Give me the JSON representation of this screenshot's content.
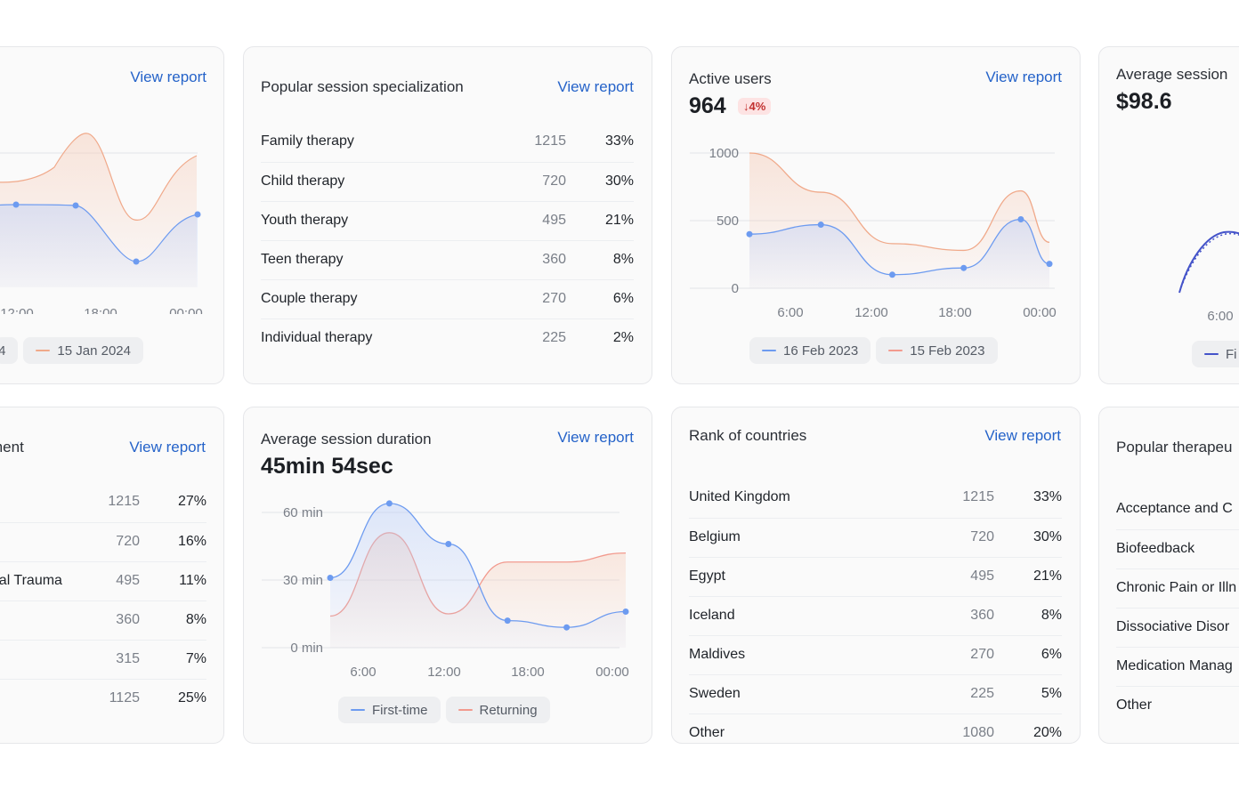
{
  "colors": {
    "blue": "#6d9bf0",
    "orange": "#f0a98a",
    "red": "#f29a8e",
    "indigo": "#4453c9",
    "link": "#2563c9"
  },
  "common": {
    "view_report": "View report"
  },
  "card_sessions_left": {
    "legend": [
      "4",
      "15 Jan 2024"
    ],
    "x_ticks": [
      "12:00",
      "18:00",
      "00:00"
    ]
  },
  "card_specialization": {
    "title": "Popular session specialization",
    "rows": [
      {
        "name": "Family therapy",
        "count": "1215",
        "pct": "33%"
      },
      {
        "name": "Child therapy",
        "count": "720",
        "pct": "30%"
      },
      {
        "name": "Youth therapy",
        "count": "495",
        "pct": "21%"
      },
      {
        "name": "Teen therapy",
        "count": "360",
        "pct": "8%"
      },
      {
        "name": "Couple therapy",
        "count": "270",
        "pct": "6%"
      },
      {
        "name": "Individual therapy",
        "count": "225",
        "pct": "2%"
      }
    ]
  },
  "card_active_users": {
    "title": "Active users",
    "value": "964",
    "delta": "↓4%",
    "y_ticks": [
      "1000",
      "500",
      "0"
    ],
    "x_ticks": [
      "6:00",
      "12:00",
      "18:00",
      "00:00"
    ],
    "legend": [
      "16 Feb 2023",
      "15 Feb 2023"
    ]
  },
  "card_avg_session_right": {
    "title": "Average session",
    "value": "$98.6",
    "x_tick": "6:00",
    "legend": "Fi"
  },
  "card_treatment": {
    "title": "ment",
    "rows": [
      {
        "name": "",
        "count": "1215",
        "pct": "27%"
      },
      {
        "name": "",
        "count": "720",
        "pct": "16%"
      },
      {
        "name": "onal Trauma",
        "count": "495",
        "pct": "11%"
      },
      {
        "name": "",
        "count": "360",
        "pct": "8%"
      },
      {
        "name": "",
        "count": "315",
        "pct": "7%"
      },
      {
        "name": "",
        "count": "1125",
        "pct": "25%"
      }
    ]
  },
  "card_duration": {
    "title": "Average session duration",
    "value": "45min 54sec",
    "y_ticks": [
      "60 min",
      "30 min",
      "0 min"
    ],
    "x_ticks": [
      "6:00",
      "12:00",
      "18:00",
      "00:00"
    ],
    "legend": [
      "First-time",
      "Returning"
    ]
  },
  "card_countries": {
    "title": "Rank of countries",
    "rows": [
      {
        "name": "United Kingdom",
        "count": "1215",
        "pct": "33%"
      },
      {
        "name": "Belgium",
        "count": "720",
        "pct": "30%"
      },
      {
        "name": "Egypt",
        "count": "495",
        "pct": "21%"
      },
      {
        "name": "Iceland",
        "count": "360",
        "pct": "8%"
      },
      {
        "name": "Maldives",
        "count": "270",
        "pct": "6%"
      },
      {
        "name": "Sweden",
        "count": "225",
        "pct": "5%"
      },
      {
        "name": "Other",
        "count": "1080",
        "pct": "20%"
      }
    ]
  },
  "card_approaches": {
    "title": "Popular therapeu",
    "rows": [
      "Acceptance and C",
      "Biofeedback",
      "Chronic Pain or Illn",
      "Dissociative Disor",
      "Medication Manag",
      "Other"
    ]
  },
  "chart_data": [
    {
      "type": "line",
      "x": [
        "6:00",
        "12:00",
        "18:00",
        "00:00"
      ],
      "y_ticks": [
        "1000",
        "500",
        "0"
      ],
      "ylim": [
        0,
        1000
      ],
      "series": [
        {
          "name": "16 Feb 2023",
          "x": [
            "3:00",
            "8:00",
            "13:00",
            "18:00",
            "22:00",
            "24:00"
          ],
          "values": [
            400,
            470,
            100,
            150,
            510,
            180
          ]
        },
        {
          "name": "15 Feb 2023",
          "x": [
            "3:00",
            "8:00",
            "13:00",
            "18:00",
            "22:00",
            "24:00"
          ],
          "values": [
            1000,
            710,
            330,
            280,
            720,
            340
          ]
        }
      ]
    },
    {
      "type": "line",
      "x": [
        "6:00",
        "12:00",
        "18:00",
        "00:00"
      ],
      "y_ticks": [
        "60 min",
        "30 min",
        "0 min"
      ],
      "ylim": [
        0,
        60
      ],
      "series": [
        {
          "name": "First-time",
          "x": [
            "4:00",
            "8:00",
            "12:00",
            "16:00",
            "20:00",
            "24:00"
          ],
          "values": [
            31,
            64,
            46,
            12,
            9,
            16
          ]
        },
        {
          "name": "Returning",
          "x": [
            "4:00",
            "8:00",
            "12:00",
            "16:00",
            "20:00",
            "24:00"
          ],
          "values": [
            14,
            51,
            15,
            38,
            38,
            42
          ]
        }
      ]
    }
  ]
}
